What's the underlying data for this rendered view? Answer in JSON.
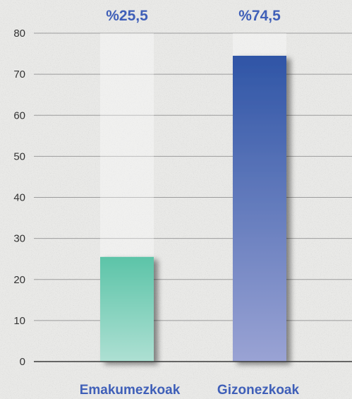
{
  "chart_data": {
    "type": "bar",
    "categories": [
      "Emakumezkoak",
      "Gizonezkoak"
    ],
    "values": [
      25.5,
      74.5
    ],
    "value_labels": [
      "%25,5",
      "%74,5"
    ],
    "ylim": [
      0,
      80
    ],
    "yticks": [
      "0",
      "10",
      "20",
      "30",
      "40",
      "50",
      "60",
      "70",
      "80"
    ],
    "grid": true,
    "legend": "none",
    "colors": {
      "Emakumezkoak": {
        "top": "#5cc4a8",
        "bottom": "#aee0d3"
      },
      "Gizonezkoak": {
        "top": "#2f55a6",
        "bottom": "#9aa3d4"
      },
      "labels": "#3f5fb8",
      "axis": "#3a3a3a",
      "grid": "#9c9c9c",
      "background": "#e9e9e7"
    }
  }
}
